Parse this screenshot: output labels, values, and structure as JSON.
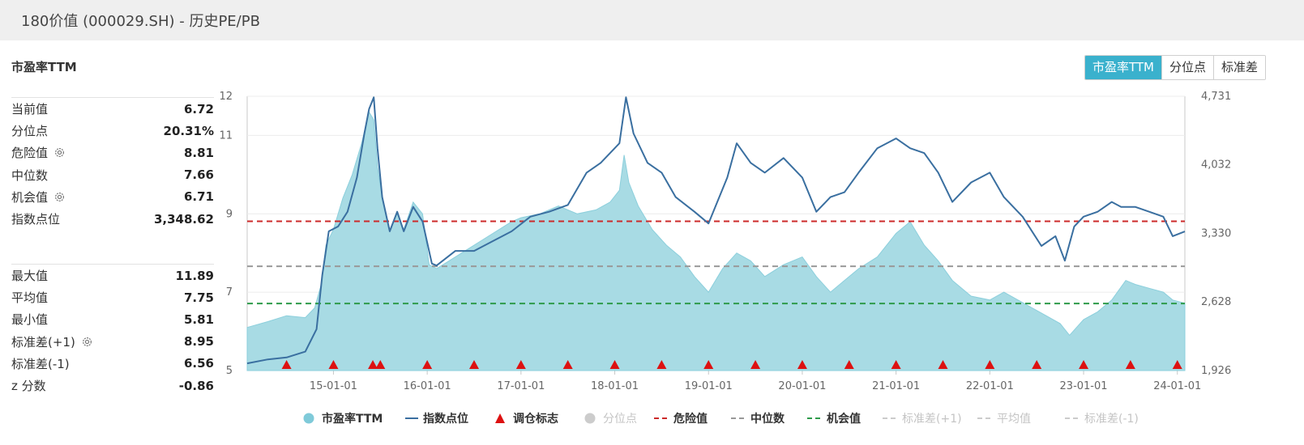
{
  "header": {
    "title": "180价值 (000029.SH) - 历史PE/PB"
  },
  "section_title": "市盈率TTM",
  "toggle": {
    "buttons": [
      "市盈率TTM",
      "分位点",
      "标准差"
    ],
    "active": 0,
    "active_color": "#3ab1cd"
  },
  "stats_group1": [
    {
      "label": "当前值",
      "value": "6.72",
      "gear": false
    },
    {
      "label": "分位点",
      "value": "20.31%",
      "gear": false
    },
    {
      "label": "危险值",
      "value": "8.81",
      "gear": true
    },
    {
      "label": "中位数",
      "value": "7.66",
      "gear": false
    },
    {
      "label": "机会值",
      "value": "6.71",
      "gear": true
    },
    {
      "label": "指数点位",
      "value": "3,348.62",
      "gear": false
    }
  ],
  "stats_group2": [
    {
      "label": "最大值",
      "value": "11.89",
      "gear": false
    },
    {
      "label": "平均值",
      "value": "7.75",
      "gear": false
    },
    {
      "label": "最小值",
      "value": "5.81",
      "gear": false
    },
    {
      "label": "标准差(+1)",
      "value": "8.95",
      "gear": true
    },
    {
      "label": "标准差(-1)",
      "value": "6.56",
      "gear": false
    },
    {
      "label": "z 分数",
      "value": "-0.86",
      "gear": false
    }
  ],
  "chart_data": {
    "type": "area",
    "x_tick_labels": [
      "15-01-01",
      "16-01-01",
      "17-01-01",
      "18-01-01",
      "19-01-01",
      "20-01-01",
      "21-01-01",
      "22-01-01",
      "23-01-01",
      "24-01-01"
    ],
    "x_range": [
      2014.08,
      2024.08
    ],
    "y_left": {
      "ticks": [
        5,
        7,
        9,
        11,
        12
      ],
      "tick_labels": [
        "5",
        "7",
        "9",
        "11",
        "12"
      ],
      "range": [
        5,
        12
      ]
    },
    "y_right": {
      "ticks": [
        1926,
        2628,
        3330,
        4032,
        4731
      ],
      "tick_labels": [
        "1,926",
        "2,628",
        "3,330",
        "4,032",
        "4,731"
      ],
      "range": [
        1926,
        4731
      ]
    },
    "series": [
      {
        "name": "市盈率TTM",
        "kind": "area",
        "axis": "left",
        "color": "#a8dbe4",
        "points": [
          [
            2014.08,
            6.1
          ],
          [
            2014.3,
            6.25
          ],
          [
            2014.5,
            6.4
          ],
          [
            2014.7,
            6.35
          ],
          [
            2014.8,
            6.6
          ],
          [
            2014.87,
            7.2
          ],
          [
            2014.92,
            8.2
          ],
          [
            2015.0,
            8.6
          ],
          [
            2015.1,
            9.4
          ],
          [
            2015.2,
            10.0
          ],
          [
            2015.3,
            10.8
          ],
          [
            2015.38,
            11.6
          ],
          [
            2015.43,
            11.4
          ],
          [
            2015.47,
            10.2
          ],
          [
            2015.52,
            9.4
          ],
          [
            2015.6,
            8.6
          ],
          [
            2015.68,
            9.0
          ],
          [
            2015.75,
            8.6
          ],
          [
            2015.85,
            9.3
          ],
          [
            2015.95,
            9.0
          ],
          [
            2016.02,
            7.7
          ],
          [
            2016.1,
            7.6
          ],
          [
            2016.3,
            7.9
          ],
          [
            2016.5,
            8.2
          ],
          [
            2016.7,
            8.5
          ],
          [
            2016.9,
            8.8
          ],
          [
            2017.0,
            8.9
          ],
          [
            2017.2,
            9.0
          ],
          [
            2017.4,
            9.2
          ],
          [
            2017.6,
            9.0
          ],
          [
            2017.8,
            9.1
          ],
          [
            2017.95,
            9.3
          ],
          [
            2018.05,
            9.6
          ],
          [
            2018.1,
            10.5
          ],
          [
            2018.15,
            9.8
          ],
          [
            2018.25,
            9.2
          ],
          [
            2018.4,
            8.6
          ],
          [
            2018.55,
            8.2
          ],
          [
            2018.7,
            7.9
          ],
          [
            2018.85,
            7.4
          ],
          [
            2019.0,
            7.0
          ],
          [
            2019.15,
            7.6
          ],
          [
            2019.3,
            8.0
          ],
          [
            2019.45,
            7.8
          ],
          [
            2019.6,
            7.4
          ],
          [
            2019.8,
            7.7
          ],
          [
            2020.0,
            7.9
          ],
          [
            2020.15,
            7.4
          ],
          [
            2020.3,
            7.0
          ],
          [
            2020.45,
            7.3
          ],
          [
            2020.6,
            7.6
          ],
          [
            2020.8,
            7.9
          ],
          [
            2021.0,
            8.5
          ],
          [
            2021.15,
            8.8
          ],
          [
            2021.3,
            8.2
          ],
          [
            2021.45,
            7.8
          ],
          [
            2021.6,
            7.3
          ],
          [
            2021.8,
            6.9
          ],
          [
            2022.0,
            6.8
          ],
          [
            2022.15,
            7.0
          ],
          [
            2022.3,
            6.8
          ],
          [
            2022.45,
            6.6
          ],
          [
            2022.6,
            6.4
          ],
          [
            2022.75,
            6.2
          ],
          [
            2022.85,
            5.9
          ],
          [
            2023.0,
            6.3
          ],
          [
            2023.15,
            6.5
          ],
          [
            2023.3,
            6.8
          ],
          [
            2023.45,
            7.3
          ],
          [
            2023.55,
            7.2
          ],
          [
            2023.7,
            7.1
          ],
          [
            2023.85,
            7.0
          ],
          [
            2023.95,
            6.8
          ],
          [
            2024.08,
            6.72
          ]
        ]
      },
      {
        "name": "指数点位",
        "kind": "line",
        "axis": "right",
        "color": "#3a6fa0",
        "points": [
          [
            2014.08,
            2000
          ],
          [
            2014.3,
            2040
          ],
          [
            2014.5,
            2060
          ],
          [
            2014.7,
            2120
          ],
          [
            2014.82,
            2350
          ],
          [
            2014.88,
            2900
          ],
          [
            2014.95,
            3350
          ],
          [
            2015.05,
            3400
          ],
          [
            2015.15,
            3550
          ],
          [
            2015.25,
            3900
          ],
          [
            2015.33,
            4350
          ],
          [
            2015.38,
            4600
          ],
          [
            2015.43,
            4720
          ],
          [
            2015.47,
            4200
          ],
          [
            2015.52,
            3700
          ],
          [
            2015.6,
            3350
          ],
          [
            2015.68,
            3550
          ],
          [
            2015.75,
            3350
          ],
          [
            2015.85,
            3600
          ],
          [
            2015.95,
            3450
          ],
          [
            2016.05,
            3020
          ],
          [
            2016.1,
            3000
          ],
          [
            2016.3,
            3150
          ],
          [
            2016.5,
            3150
          ],
          [
            2016.7,
            3250
          ],
          [
            2016.9,
            3350
          ],
          [
            2017.1,
            3500
          ],
          [
            2017.3,
            3550
          ],
          [
            2017.5,
            3620
          ],
          [
            2017.7,
            3950
          ],
          [
            2017.85,
            4050
          ],
          [
            2018.05,
            4250
          ],
          [
            2018.12,
            4720
          ],
          [
            2018.2,
            4350
          ],
          [
            2018.35,
            4050
          ],
          [
            2018.5,
            3950
          ],
          [
            2018.65,
            3700
          ],
          [
            2018.85,
            3550
          ],
          [
            2019.0,
            3430
          ],
          [
            2019.2,
            3900
          ],
          [
            2019.3,
            4250
          ],
          [
            2019.45,
            4050
          ],
          [
            2019.6,
            3950
          ],
          [
            2019.8,
            4100
          ],
          [
            2020.0,
            3900
          ],
          [
            2020.15,
            3550
          ],
          [
            2020.3,
            3700
          ],
          [
            2020.45,
            3750
          ],
          [
            2020.6,
            3950
          ],
          [
            2020.8,
            4200
          ],
          [
            2021.0,
            4300
          ],
          [
            2021.15,
            4200
          ],
          [
            2021.3,
            4150
          ],
          [
            2021.45,
            3950
          ],
          [
            2021.6,
            3650
          ],
          [
            2021.8,
            3850
          ],
          [
            2022.0,
            3950
          ],
          [
            2022.15,
            3700
          ],
          [
            2022.35,
            3500
          ],
          [
            2022.55,
            3200
          ],
          [
            2022.7,
            3300
          ],
          [
            2022.8,
            3050
          ],
          [
            2022.9,
            3400
          ],
          [
            2023.0,
            3500
          ],
          [
            2023.15,
            3550
          ],
          [
            2023.3,
            3650
          ],
          [
            2023.4,
            3600
          ],
          [
            2023.55,
            3600
          ],
          [
            2023.7,
            3550
          ],
          [
            2023.85,
            3500
          ],
          [
            2023.95,
            3300
          ],
          [
            2024.08,
            3348.62
          ]
        ]
      }
    ],
    "rebalance_markers": [
      2014.5,
      2015.0,
      2015.42,
      2015.5,
      2016.0,
      2016.5,
      2017.0,
      2017.5,
      2018.0,
      2018.5,
      2019.0,
      2019.5,
      2020.0,
      2020.5,
      2021.0,
      2021.5,
      2022.0,
      2022.5,
      2023.0,
      2023.5,
      2024.0
    ],
    "ref_lines": [
      {
        "name": "危险值",
        "value": 8.81,
        "color": "#cc2a2a"
      },
      {
        "name": "中位数",
        "value": 7.66,
        "color": "#999999"
      },
      {
        "name": "机会值",
        "value": 6.71,
        "color": "#2e9b4a"
      }
    ],
    "legend": [
      {
        "label": "市盈率TTM",
        "shape": "circle",
        "color": "#7fcad9",
        "active": true
      },
      {
        "label": "指数点位",
        "shape": "line",
        "color": "#3a6fa0",
        "active": true
      },
      {
        "label": "调仓标志",
        "shape": "triangle",
        "color": "#dd1111",
        "active": true
      },
      {
        "label": "分位点",
        "shape": "circle",
        "color": "#cccccc",
        "active": false
      },
      {
        "label": "危险值",
        "shape": "dash",
        "color": "#cc2a2a",
        "active": true
      },
      {
        "label": "中位数",
        "shape": "dash",
        "color": "#999999",
        "active": true
      },
      {
        "label": "机会值",
        "shape": "dash",
        "color": "#2e9b4a",
        "active": true
      },
      {
        "label": "标准差(+1)",
        "shape": "dash",
        "color": "#cccccc",
        "active": false
      },
      {
        "label": "平均值",
        "shape": "dash",
        "color": "#cccccc",
        "active": false
      },
      {
        "label": "标准差(-1)",
        "shape": "dash",
        "color": "#cccccc",
        "active": false
      }
    ],
    "legend_position": "bottom",
    "grid": true
  }
}
